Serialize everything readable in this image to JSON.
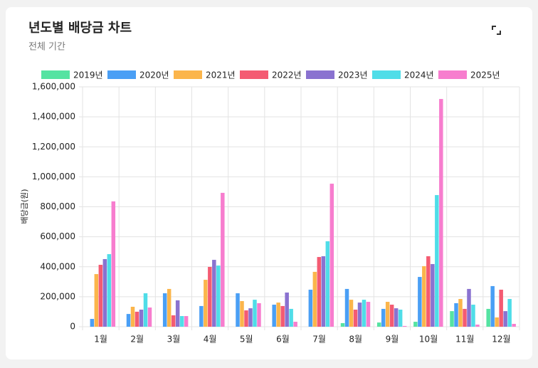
{
  "chart_data": {
    "type": "bar",
    "title": "년도별 배당금 차트",
    "subtitle": "전체 기간",
    "y_label": "배당금(원)",
    "categories": [
      "1월",
      "2월",
      "3월",
      "4월",
      "5월",
      "6월",
      "7월",
      "8월",
      "9월",
      "10월",
      "11월",
      "12월"
    ],
    "series": [
      {
        "name": "2019년",
        "color": "#55e3a2",
        "values": [
          0,
          0,
          0,
          0,
          0,
          0,
          0,
          24000,
          28000,
          33000,
          104000,
          119000
        ]
      },
      {
        "name": "2020년",
        "color": "#4a9ff5",
        "values": [
          52000,
          85000,
          223000,
          138000,
          223000,
          147000,
          247000,
          252000,
          119000,
          332000,
          157000,
          271000
        ]
      },
      {
        "name": "2021년",
        "color": "#fbb54b",
        "values": [
          351000,
          133000,
          252000,
          313000,
          171000,
          161000,
          366000,
          180000,
          166000,
          404000,
          185000,
          62000
        ]
      },
      {
        "name": "2022년",
        "color": "#f45b72",
        "values": [
          413000,
          100000,
          76000,
          399000,
          109000,
          138000,
          465000,
          114000,
          147000,
          470000,
          119000,
          247000
        ]
      },
      {
        "name": "2023년",
        "color": "#8a72d0",
        "values": [
          451000,
          114000,
          176000,
          446000,
          123000,
          228000,
          470000,
          161000,
          123000,
          418000,
          252000,
          104000
        ]
      },
      {
        "name": "2024년",
        "color": "#4fdde8",
        "values": [
          484000,
          223000,
          71000,
          408000,
          180000,
          119000,
          570000,
          180000,
          114000,
          878000,
          147000,
          185000
        ]
      },
      {
        "name": "2025년",
        "color": "#f77dce",
        "values": [
          836000,
          128000,
          71000,
          893000,
          157000,
          33000,
          954000,
          166000,
          5000,
          1519000,
          14000,
          19000
        ]
      }
    ],
    "ylim": [
      0,
      1600000
    ],
    "yticks": [
      0,
      {
        "value": 200000,
        "label": "200,000"
      },
      {
        "value": 400000,
        "label": "400,000"
      },
      {
        "value": 600000,
        "label": "600,000"
      },
      {
        "value": 800000,
        "label": "800,000"
      },
      {
        "value": 1000000,
        "label": "1,000,000"
      },
      {
        "value": 1200000,
        "label": "1,200,000"
      },
      {
        "value": 1400000,
        "label": "1,400,000"
      },
      {
        "value": 1600000,
        "label": "1,600,000"
      }
    ],
    "grid": true
  }
}
